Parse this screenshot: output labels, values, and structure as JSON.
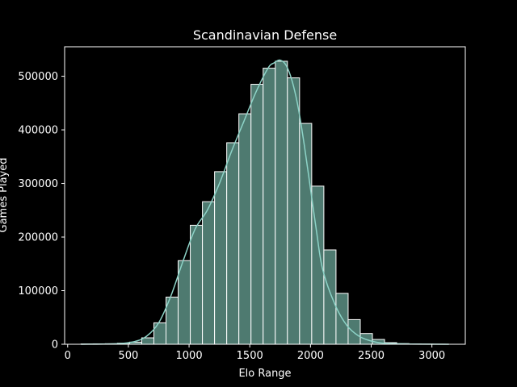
{
  "chart_data": {
    "type": "bar",
    "title": "Scandinavian Defense",
    "xlabel": "Elo Range",
    "ylabel": "Games Played",
    "xlim": [
      -25,
      3275
    ],
    "ylim": [
      0,
      555000
    ],
    "x_ticks": [
      0,
      500,
      1000,
      1500,
      2000,
      2500,
      3000
    ],
    "y_ticks": [
      0,
      100000,
      200000,
      300000,
      400000,
      500000
    ],
    "grid": false,
    "bin_edges": [
      110,
      210,
      310,
      410,
      510,
      610,
      710,
      810,
      910,
      1010,
      1110,
      1210,
      1310,
      1410,
      1510,
      1610,
      1710,
      1810,
      1910,
      2010,
      2110,
      2210,
      2310,
      2410,
      2510,
      2610,
      2710,
      2810,
      2910,
      3010,
      3110
    ],
    "values": [
      500,
      800,
      1000,
      2000,
      4000,
      12000,
      40000,
      88000,
      156000,
      222000,
      266000,
      322000,
      376000,
      430000,
      485000,
      515000,
      528000,
      497000,
      412000,
      295000,
      176000,
      95000,
      46000,
      20000,
      9000,
      3000,
      1200,
      600,
      300,
      100
    ],
    "kde": {
      "x": [
        110,
        400,
        550,
        650,
        750,
        850,
        950,
        1050,
        1150,
        1250,
        1350,
        1450,
        1550,
        1650,
        1700,
        1750,
        1800,
        1850,
        1900,
        1950,
        2000,
        2050,
        2100,
        2200,
        2300,
        2400,
        2500,
        2600,
        2800,
        3140
      ],
      "y": [
        0,
        1000,
        5000,
        15000,
        40000,
        90000,
        155000,
        215000,
        250000,
        300000,
        360000,
        415000,
        470000,
        515000,
        525000,
        530000,
        520000,
        490000,
        440000,
        370000,
        290000,
        210000,
        140000,
        75000,
        35000,
        15000,
        6000,
        2000,
        500,
        0
      ]
    },
    "colors": {
      "background": "#000000",
      "bar_fill": "#4e7a70",
      "bar_edge": "#ffffff",
      "line": "#8dd3c7",
      "axes": "#ffffff",
      "text": "#ffffff"
    }
  }
}
